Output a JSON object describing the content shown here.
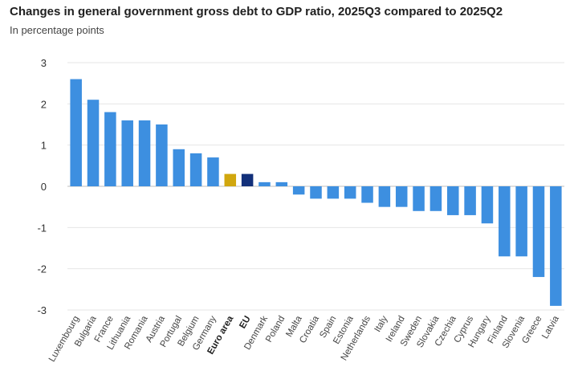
{
  "chart_data": {
    "type": "bar",
    "title": "Changes in general government gross debt to GDP ratio, 2025Q3 compared to 2025Q2",
    "subtitle": "In percentage points",
    "ylim": [
      -3,
      3
    ],
    "yticks": [
      3,
      2,
      1,
      0,
      -1,
      -2,
      -3
    ],
    "grid": true,
    "categories": [
      "Luxembourg",
      "Bulgaria",
      "France",
      "Lithuania",
      "Romania",
      "Austria",
      "Portugal",
      "Belgium",
      "Germany",
      "Euro area",
      "EU",
      "Denmark",
      "Poland",
      "Malta",
      "Croatia",
      "Spain",
      "Estonia",
      "Netherlands",
      "Italy",
      "Ireland",
      "Sweden",
      "Slovakia",
      "Czechia",
      "Cyprus",
      "Hungary",
      "Finland",
      "Slovenia",
      "Greece",
      "Latvia"
    ],
    "values": [
      2.6,
      2.1,
      1.8,
      1.6,
      1.6,
      1.5,
      0.9,
      0.8,
      0.7,
      0.3,
      0.3,
      0.1,
      0.1,
      -0.2,
      -0.3,
      -0.3,
      -0.3,
      -0.4,
      -0.5,
      -0.5,
      -0.6,
      -0.6,
      -0.7,
      -0.7,
      -0.9,
      -1.7,
      -1.7,
      -2.2,
      -2.9
    ],
    "highlighted": [
      "Euro area",
      "EU"
    ],
    "colors": {
      "default": "#3d8fe0",
      "Euro area": "#d1a70e",
      "EU": "#12307a"
    }
  }
}
